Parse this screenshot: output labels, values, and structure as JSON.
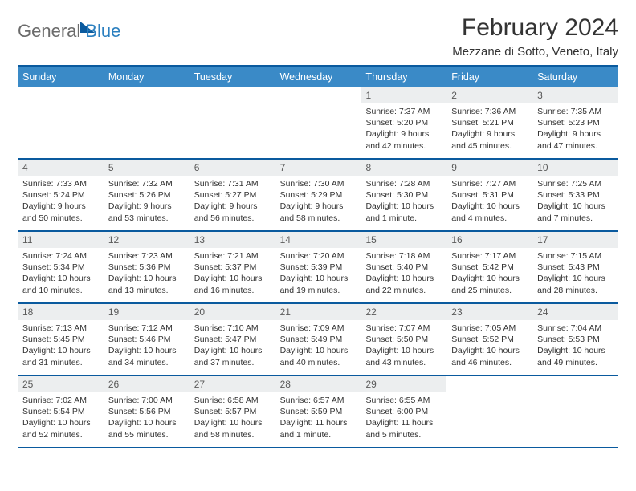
{
  "logo": {
    "part1": "General",
    "part2": "Blue"
  },
  "header": {
    "title": "February 2024",
    "location": "Mezzane di Sotto, Veneto, Italy"
  },
  "colors": {
    "accent": "#0a5a9e",
    "header_band": "#3a8ac7",
    "day_num_bg": "#eceeef",
    "text": "#333333",
    "logo_gray": "#6b6b6b",
    "logo_blue": "#2b7fbf"
  },
  "day_headers": [
    "Sunday",
    "Monday",
    "Tuesday",
    "Wednesday",
    "Thursday",
    "Friday",
    "Saturday"
  ],
  "weeks": [
    [
      {
        "empty": true
      },
      {
        "empty": true
      },
      {
        "empty": true
      },
      {
        "empty": true
      },
      {
        "num": "1",
        "sunrise": "Sunrise: 7:37 AM",
        "sunset": "Sunset: 5:20 PM",
        "day1": "Daylight: 9 hours",
        "day2": "and 42 minutes."
      },
      {
        "num": "2",
        "sunrise": "Sunrise: 7:36 AM",
        "sunset": "Sunset: 5:21 PM",
        "day1": "Daylight: 9 hours",
        "day2": "and 45 minutes."
      },
      {
        "num": "3",
        "sunrise": "Sunrise: 7:35 AM",
        "sunset": "Sunset: 5:23 PM",
        "day1": "Daylight: 9 hours",
        "day2": "and 47 minutes."
      }
    ],
    [
      {
        "num": "4",
        "sunrise": "Sunrise: 7:33 AM",
        "sunset": "Sunset: 5:24 PM",
        "day1": "Daylight: 9 hours",
        "day2": "and 50 minutes."
      },
      {
        "num": "5",
        "sunrise": "Sunrise: 7:32 AM",
        "sunset": "Sunset: 5:26 PM",
        "day1": "Daylight: 9 hours",
        "day2": "and 53 minutes."
      },
      {
        "num": "6",
        "sunrise": "Sunrise: 7:31 AM",
        "sunset": "Sunset: 5:27 PM",
        "day1": "Daylight: 9 hours",
        "day2": "and 56 minutes."
      },
      {
        "num": "7",
        "sunrise": "Sunrise: 7:30 AM",
        "sunset": "Sunset: 5:29 PM",
        "day1": "Daylight: 9 hours",
        "day2": "and 58 minutes."
      },
      {
        "num": "8",
        "sunrise": "Sunrise: 7:28 AM",
        "sunset": "Sunset: 5:30 PM",
        "day1": "Daylight: 10 hours",
        "day2": "and 1 minute."
      },
      {
        "num": "9",
        "sunrise": "Sunrise: 7:27 AM",
        "sunset": "Sunset: 5:31 PM",
        "day1": "Daylight: 10 hours",
        "day2": "and 4 minutes."
      },
      {
        "num": "10",
        "sunrise": "Sunrise: 7:25 AM",
        "sunset": "Sunset: 5:33 PM",
        "day1": "Daylight: 10 hours",
        "day2": "and 7 minutes."
      }
    ],
    [
      {
        "num": "11",
        "sunrise": "Sunrise: 7:24 AM",
        "sunset": "Sunset: 5:34 PM",
        "day1": "Daylight: 10 hours",
        "day2": "and 10 minutes."
      },
      {
        "num": "12",
        "sunrise": "Sunrise: 7:23 AM",
        "sunset": "Sunset: 5:36 PM",
        "day1": "Daylight: 10 hours",
        "day2": "and 13 minutes."
      },
      {
        "num": "13",
        "sunrise": "Sunrise: 7:21 AM",
        "sunset": "Sunset: 5:37 PM",
        "day1": "Daylight: 10 hours",
        "day2": "and 16 minutes."
      },
      {
        "num": "14",
        "sunrise": "Sunrise: 7:20 AM",
        "sunset": "Sunset: 5:39 PM",
        "day1": "Daylight: 10 hours",
        "day2": "and 19 minutes."
      },
      {
        "num": "15",
        "sunrise": "Sunrise: 7:18 AM",
        "sunset": "Sunset: 5:40 PM",
        "day1": "Daylight: 10 hours",
        "day2": "and 22 minutes."
      },
      {
        "num": "16",
        "sunrise": "Sunrise: 7:17 AM",
        "sunset": "Sunset: 5:42 PM",
        "day1": "Daylight: 10 hours",
        "day2": "and 25 minutes."
      },
      {
        "num": "17",
        "sunrise": "Sunrise: 7:15 AM",
        "sunset": "Sunset: 5:43 PM",
        "day1": "Daylight: 10 hours",
        "day2": "and 28 minutes."
      }
    ],
    [
      {
        "num": "18",
        "sunrise": "Sunrise: 7:13 AM",
        "sunset": "Sunset: 5:45 PM",
        "day1": "Daylight: 10 hours",
        "day2": "and 31 minutes."
      },
      {
        "num": "19",
        "sunrise": "Sunrise: 7:12 AM",
        "sunset": "Sunset: 5:46 PM",
        "day1": "Daylight: 10 hours",
        "day2": "and 34 minutes."
      },
      {
        "num": "20",
        "sunrise": "Sunrise: 7:10 AM",
        "sunset": "Sunset: 5:47 PM",
        "day1": "Daylight: 10 hours",
        "day2": "and 37 minutes."
      },
      {
        "num": "21",
        "sunrise": "Sunrise: 7:09 AM",
        "sunset": "Sunset: 5:49 PM",
        "day1": "Daylight: 10 hours",
        "day2": "and 40 minutes."
      },
      {
        "num": "22",
        "sunrise": "Sunrise: 7:07 AM",
        "sunset": "Sunset: 5:50 PM",
        "day1": "Daylight: 10 hours",
        "day2": "and 43 minutes."
      },
      {
        "num": "23",
        "sunrise": "Sunrise: 7:05 AM",
        "sunset": "Sunset: 5:52 PM",
        "day1": "Daylight: 10 hours",
        "day2": "and 46 minutes."
      },
      {
        "num": "24",
        "sunrise": "Sunrise: 7:04 AM",
        "sunset": "Sunset: 5:53 PM",
        "day1": "Daylight: 10 hours",
        "day2": "and 49 minutes."
      }
    ],
    [
      {
        "num": "25",
        "sunrise": "Sunrise: 7:02 AM",
        "sunset": "Sunset: 5:54 PM",
        "day1": "Daylight: 10 hours",
        "day2": "and 52 minutes."
      },
      {
        "num": "26",
        "sunrise": "Sunrise: 7:00 AM",
        "sunset": "Sunset: 5:56 PM",
        "day1": "Daylight: 10 hours",
        "day2": "and 55 minutes."
      },
      {
        "num": "27",
        "sunrise": "Sunrise: 6:58 AM",
        "sunset": "Sunset: 5:57 PM",
        "day1": "Daylight: 10 hours",
        "day2": "and 58 minutes."
      },
      {
        "num": "28",
        "sunrise": "Sunrise: 6:57 AM",
        "sunset": "Sunset: 5:59 PM",
        "day1": "Daylight: 11 hours",
        "day2": "and 1 minute."
      },
      {
        "num": "29",
        "sunrise": "Sunrise: 6:55 AM",
        "sunset": "Sunset: 6:00 PM",
        "day1": "Daylight: 11 hours",
        "day2": "and 5 minutes."
      },
      {
        "empty": true
      },
      {
        "empty": true
      }
    ]
  ]
}
